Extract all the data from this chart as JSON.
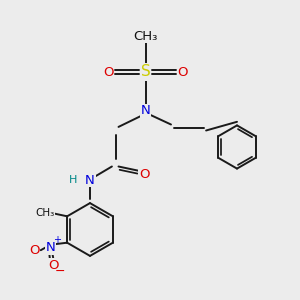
{
  "bg_color": "#ececec",
  "bond_color": "#1a1a1a",
  "bw": 1.4,
  "S_color": "#cccc00",
  "N_color": "#0000dd",
  "O_color": "#dd0000",
  "H_color": "#008888",
  "C_color": "#111111",
  "fs": 9.5,
  "sfs": 8.0,
  "xlim": [
    0,
    10
  ],
  "ylim": [
    0,
    10
  ]
}
